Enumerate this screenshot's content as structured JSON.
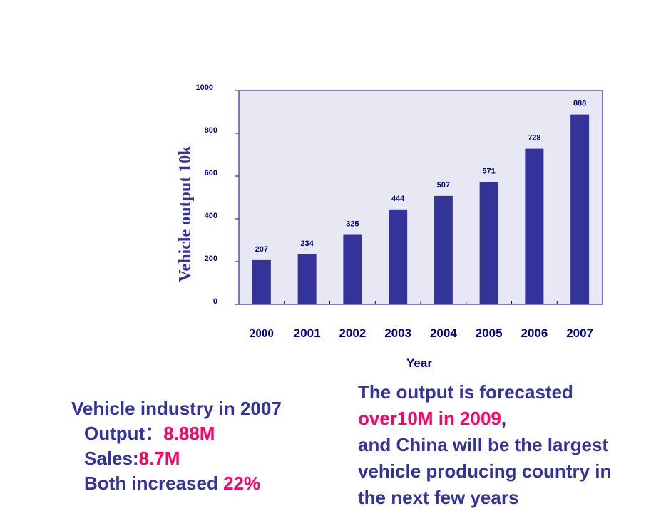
{
  "chart_data": {
    "type": "bar",
    "categories": [
      "2000",
      "2001",
      "2002",
      "2003",
      "2004",
      "2005",
      "2006",
      "2007"
    ],
    "values": [
      207,
      234,
      325,
      444,
      507,
      571,
      728,
      888
    ],
    "data_labels": [
      "207",
      "234",
      "325",
      "444",
      "507",
      "571",
      "728",
      "888"
    ],
    "ylabel": "Vehicle output 10k",
    "xlabel": "Year",
    "ylim": [
      0,
      1000
    ],
    "yticks": [
      0,
      200,
      400,
      600,
      800,
      1000
    ],
    "ytick_labels": [
      "0",
      "200",
      "400",
      "600",
      "800",
      "1000"
    ],
    "grid": false,
    "legend": "none",
    "colors": {
      "bar": "#333399",
      "plot_bg": "#e8e8f4",
      "axis": "#000080"
    }
  },
  "left_text": {
    "heading": "Vehicle industry in 2007",
    "output_label": "Output：",
    "output_value": "8.88M",
    "sales_label": "Sales:",
    "sales_value": "8.7M",
    "both_label": "Both increased ",
    "both_value": "22%"
  },
  "right_text": {
    "line1": "The output is forecasted",
    "line2_highlight": "over10M in 2009",
    "line2_rest": ",",
    "line3": "and China will be the largest",
    "line4": "vehicle producing country in",
    "line5": "the next few years"
  },
  "colors": {
    "text": "#333399",
    "highlight": "#ff0066"
  }
}
